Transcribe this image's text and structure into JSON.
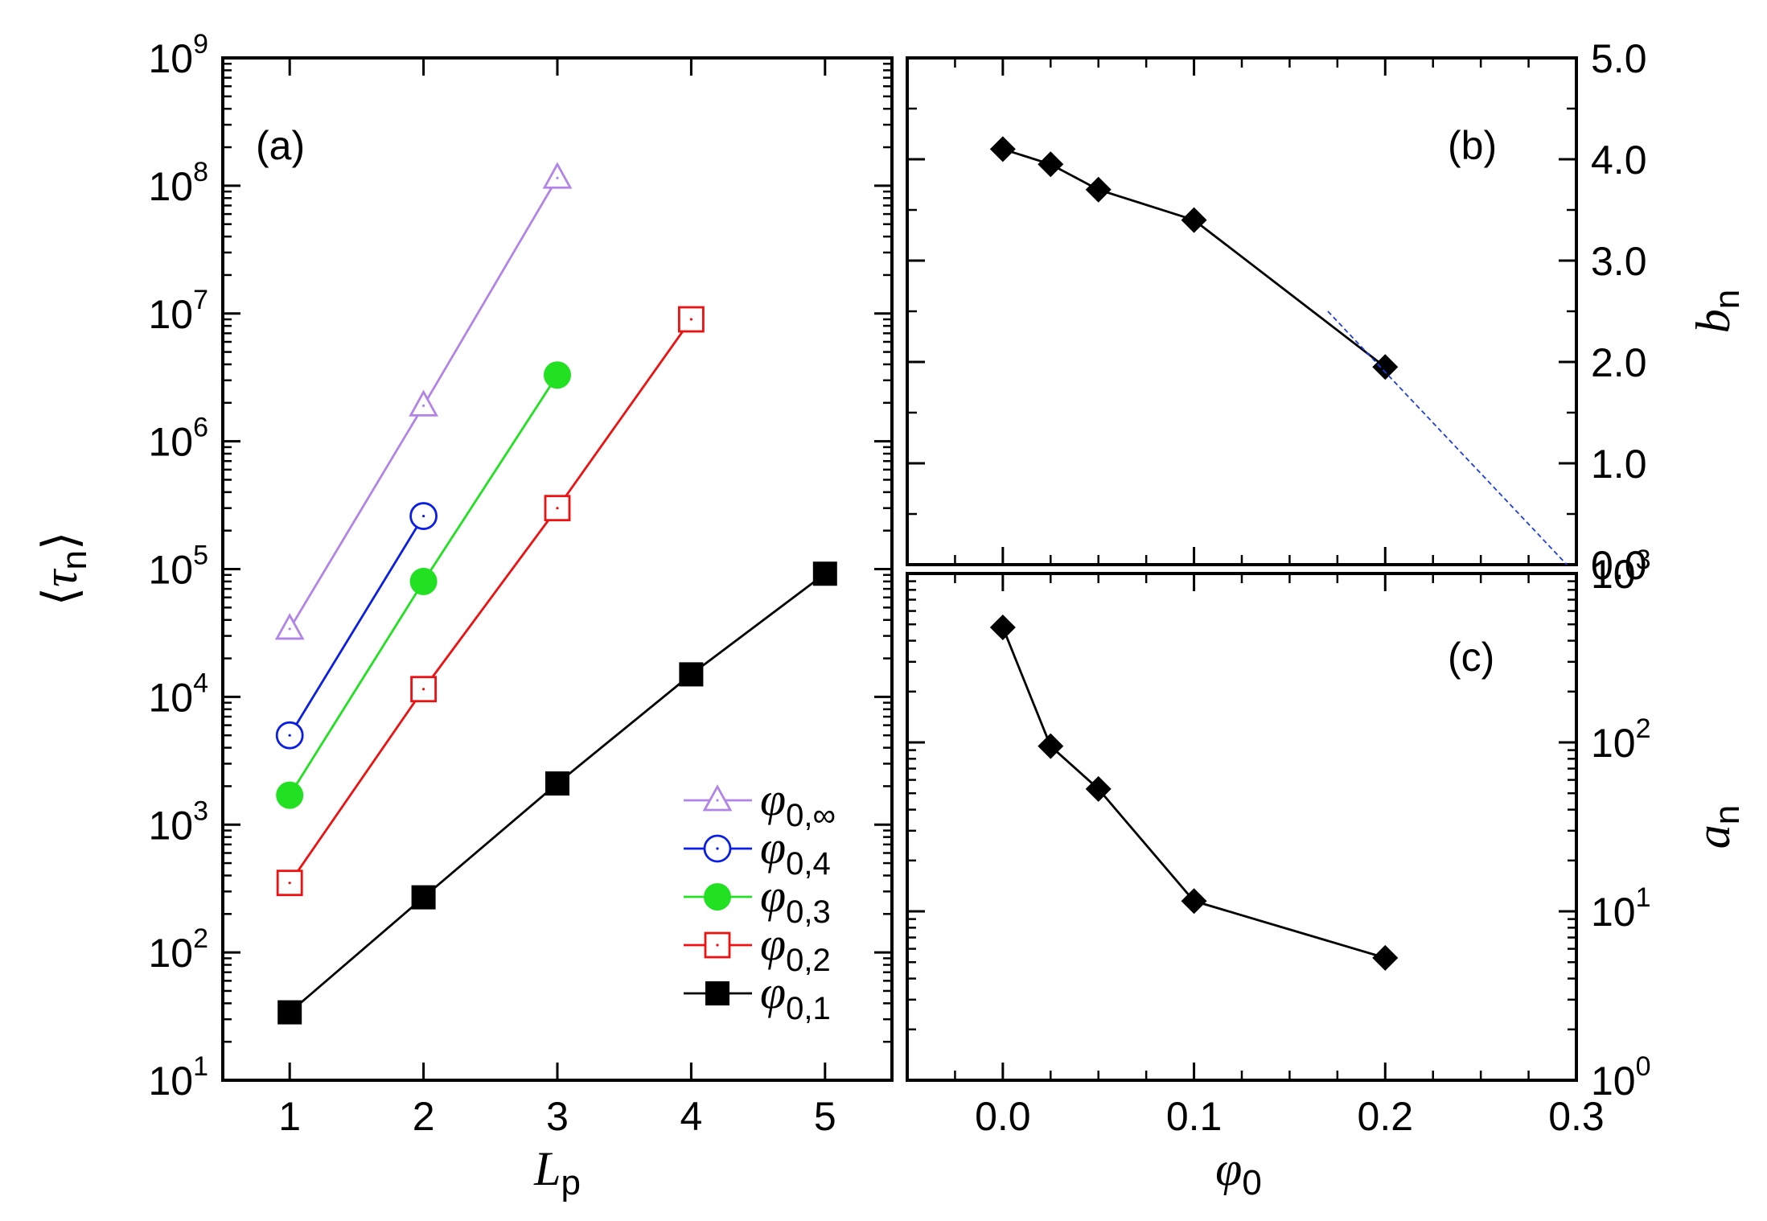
{
  "chart_data": [
    {
      "panel": "(a)",
      "type": "line",
      "scale": {
        "x": "linear",
        "y": "log"
      },
      "xlabel": "L",
      "xlabel_sub": "p",
      "ylabel": "τ",
      "ylabel_sub": "n",
      "ylabel_brackets": [
        "⟨",
        "⟩"
      ],
      "xlim": [
        0.5,
        5.5
      ],
      "ylim": [
        10,
        1000000000
      ],
      "xticks": [
        {
          "value": 1,
          "label": "1"
        },
        {
          "value": 2,
          "label": "2"
        },
        {
          "value": 3,
          "label": "3"
        },
        {
          "value": 4,
          "label": "4"
        },
        {
          "value": 5,
          "label": "5"
        }
      ],
      "yticks": [
        {
          "value": 10,
          "base": "10",
          "exp": "1"
        },
        {
          "value": 100,
          "base": "10",
          "exp": "2"
        },
        {
          "value": 1000,
          "base": "10",
          "exp": "3"
        },
        {
          "value": 10000,
          "base": "10",
          "exp": "4"
        },
        {
          "value": 100000,
          "base": "10",
          "exp": "5"
        },
        {
          "value": 1000000,
          "base": "10",
          "exp": "6"
        },
        {
          "value": 10000000,
          "base": "10",
          "exp": "7"
        },
        {
          "value": 100000000,
          "base": "10",
          "exp": "8"
        },
        {
          "value": 1000000000,
          "base": "10",
          "exp": "9"
        }
      ],
      "legend_position": "bottom-right",
      "series": [
        {
          "name": "φ0,∞",
          "symbol": "φ",
          "sub": "0,∞",
          "marker": "triangle-open",
          "color": "#b184e8",
          "x": [
            1,
            2,
            3
          ],
          "y": [
            34000,
            1900000,
            115000000
          ]
        },
        {
          "name": "φ0,4",
          "symbol": "φ",
          "sub": "0,4",
          "marker": "circle-open",
          "color": "#0a1ee6",
          "x": [
            1,
            2
          ],
          "y": [
            5000,
            260000
          ]
        },
        {
          "name": "φ0,3",
          "symbol": "φ",
          "sub": "0,3",
          "marker": "circle-filled",
          "color": "#22e022",
          "x": [
            1,
            2,
            3
          ],
          "y": [
            1700,
            80000,
            3300000
          ]
        },
        {
          "name": "φ0,2",
          "symbol": "φ",
          "sub": "0,2",
          "marker": "square-open",
          "color": "#ee1111",
          "x": [
            1,
            2,
            3,
            4
          ],
          "y": [
            350,
            11500,
            300000,
            9000000
          ]
        },
        {
          "name": "φ0,1",
          "symbol": "φ",
          "sub": "0,1",
          "marker": "square-filled",
          "color": "#000000",
          "x": [
            1,
            2,
            3,
            4,
            5
          ],
          "y": [
            34,
            270,
            2100,
            15000,
            92000
          ]
        }
      ]
    },
    {
      "panel": "(b)",
      "type": "line",
      "scale": {
        "x": "linear",
        "y": "linear"
      },
      "ylabel": "b",
      "ylabel_sub": "n",
      "xlim": [
        -0.05,
        0.3
      ],
      "ylim": [
        0.0,
        5.0
      ],
      "yticks": [
        {
          "value": 0.0,
          "label": "0.0"
        },
        {
          "value": 1.0,
          "label": "1.0"
        },
        {
          "value": 2.0,
          "label": "2.0"
        },
        {
          "value": 3.0,
          "label": "3.0"
        },
        {
          "value": 4.0,
          "label": "4.0"
        },
        {
          "value": 5.0,
          "label": "5.0"
        }
      ],
      "series": [
        {
          "name": "b_n",
          "marker": "diamond-filled",
          "color": "#000000",
          "x": [
            0.0,
            0.025,
            0.05,
            0.1,
            0.2
          ],
          "y": [
            4.1,
            3.95,
            3.7,
            3.4,
            1.95
          ]
        },
        {
          "name": "linear extrapolation",
          "marker": "none",
          "style": "dashed",
          "color": "#1f3fdd",
          "x": [
            0.17,
            0.295
          ],
          "y": [
            2.5,
            0.0
          ]
        }
      ]
    },
    {
      "panel": "(c)",
      "type": "line",
      "scale": {
        "x": "linear",
        "y": "log"
      },
      "xlabel": "φ",
      "xlabel_sub": "0",
      "ylabel": "a",
      "ylabel_sub": "n",
      "xlim": [
        -0.05,
        0.3
      ],
      "ylim": [
        1,
        1000
      ],
      "xticks": [
        {
          "value": 0.0,
          "label": "0.0"
        },
        {
          "value": 0.1,
          "label": "0.1"
        },
        {
          "value": 0.2,
          "label": "0.2"
        },
        {
          "value": 0.3,
          "label": "0.3"
        }
      ],
      "yticks": [
        {
          "value": 1,
          "base": "10",
          "exp": "0"
        },
        {
          "value": 10,
          "base": "10",
          "exp": "1"
        },
        {
          "value": 100,
          "base": "10",
          "exp": "2"
        },
        {
          "value": 1000,
          "base": "10",
          "exp": "3"
        }
      ],
      "series": [
        {
          "name": "a_n",
          "marker": "diamond-filled",
          "color": "#000000",
          "x": [
            0.0,
            0.025,
            0.05,
            0.1,
            0.2
          ],
          "y": [
            480,
            95,
            53,
            11.5,
            5.3
          ]
        }
      ]
    }
  ]
}
